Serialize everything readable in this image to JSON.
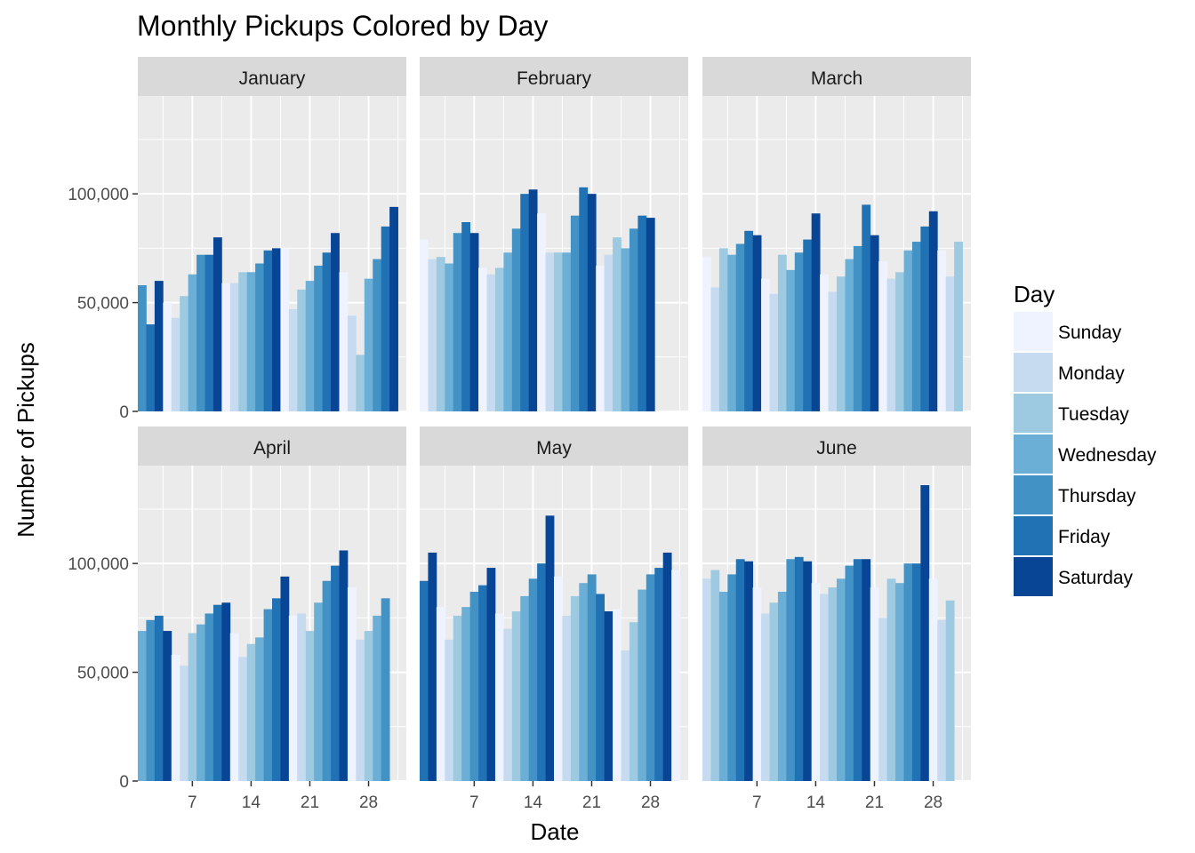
{
  "chart_data": {
    "type": "bar",
    "title": "Monthly Pickups Colored by Day",
    "xlabel": "Date",
    "ylabel": "Number of Pickups",
    "ylim": [
      0,
      145000
    ],
    "xlim": [
      0.5,
      32.5
    ],
    "x_ticks": [
      7,
      14,
      21,
      28
    ],
    "y_ticks": [
      0,
      50000,
      100000
    ],
    "y_tick_labels": [
      "0",
      "50,000",
      "100,000"
    ],
    "legend": {
      "title": "Day",
      "placement": "right",
      "entries": [
        "Sunday",
        "Monday",
        "Tuesday",
        "Wednesday",
        "Thursday",
        "Friday",
        "Saturday"
      ],
      "colors": [
        "#EEF3FF",
        "#C6DBEF",
        "#9ECAE1",
        "#6BAED6",
        "#4292C6",
        "#2171B5",
        "#084594"
      ]
    },
    "panels": [
      {
        "month": "January",
        "first_weekday": 4,
        "values": [
          58000,
          40000,
          60000,
          50000,
          43000,
          53000,
          63000,
          72000,
          72000,
          80000,
          59000,
          59000,
          64000,
          64000,
          68000,
          74000,
          75000,
          75000,
          47000,
          56000,
          60000,
          67000,
          73000,
          82000,
          64000,
          44000,
          26000,
          61000,
          70000,
          85000,
          94000
        ]
      },
      {
        "month": "February",
        "first_weekday": 0,
        "values": [
          79000,
          70000,
          71000,
          68000,
          82000,
          87000,
          82000,
          66000,
          63000,
          66000,
          73000,
          84000,
          100000,
          102000,
          91000,
          73000,
          73000,
          73000,
          90000,
          103000,
          100000,
          67000,
          72000,
          80000,
          75000,
          84000,
          90000,
          89000
        ]
      },
      {
        "month": "March",
        "first_weekday": 0,
        "values": [
          71000,
          57000,
          75000,
          72000,
          77000,
          83000,
          81000,
          61000,
          54000,
          72000,
          65000,
          73000,
          79000,
          91000,
          63000,
          55000,
          62000,
          70000,
          76000,
          95000,
          81000,
          69000,
          61000,
          64000,
          74000,
          78000,
          85000,
          92000,
          74000,
          62000,
          78000
        ]
      },
      {
        "month": "April",
        "first_weekday": 3,
        "values": [
          69000,
          74000,
          76000,
          69000,
          58000,
          53000,
          68000,
          72000,
          77000,
          81000,
          82000,
          68000,
          57000,
          63000,
          66000,
          79000,
          84000,
          94000,
          76000,
          77000,
          69000,
          82000,
          92000,
          99000,
          106000,
          89000,
          65000,
          69000,
          76000,
          84000
        ]
      },
      {
        "month": "May",
        "first_weekday": 5,
        "values": [
          92000,
          105000,
          80000,
          65000,
          76000,
          80000,
          87000,
          90000,
          98000,
          77000,
          70000,
          78000,
          85000,
          93000,
          100000,
          122000,
          94000,
          76000,
          85000,
          91000,
          95000,
          86000,
          78000,
          79000,
          60000,
          73000,
          88000,
          95000,
          98000,
          105000,
          97000
        ]
      },
      {
        "month": "June",
        "first_weekday": 1,
        "values": [
          93000,
          97000,
          87000,
          95000,
          102000,
          101000,
          89000,
          77000,
          82000,
          87000,
          102000,
          103000,
          101000,
          91000,
          86000,
          89000,
          93000,
          99000,
          102000,
          102000,
          89000,
          75000,
          93000,
          91000,
          100000,
          100000,
          136000,
          93000,
          74000,
          83000
        ]
      }
    ]
  }
}
